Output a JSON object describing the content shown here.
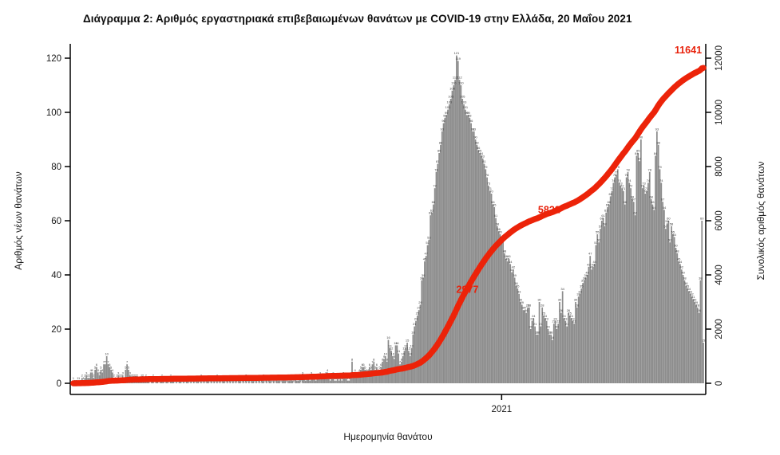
{
  "title": "Διάγραμμα 2: Αριθμός εργαστηριακά επιβεβαιωμένων θανάτων με COVID-19 στην Ελλάδα, 20 Μαΐου 2021",
  "colors": {
    "bar": "#8c8c8c",
    "bar_label": "#3d3d3d",
    "line": "#ec2309",
    "annotation": "#e8220c",
    "axis": "#000000",
    "tick_label": "#1a1a1a"
  },
  "chart_data": {
    "type": "bar",
    "title": "Διάγραμμα 2: Αριθμός εργαστηριακά επιβεβαιωμένων θανάτων με COVID-19 στην Ελλάδα, 20 Μαΐου 2021",
    "xlabel": "Ημερομηνία θανάτου",
    "ylabel_left": "Αριθμός νέων θανάτων",
    "ylabel_right": "Συνολικός αριθμός θανάτων",
    "bars_series_name": "Αριθμός νέων θανάτων (daily deaths)",
    "line_series_name": "Συνολικός αριθμός θανάτων (cumulative deaths)",
    "ylim_left": [
      0,
      120
    ],
    "ylim_right": [
      0,
      12000
    ],
    "yticks_left": [
      0,
      20,
      40,
      60,
      80,
      100,
      120
    ],
    "yticks_right": [
      0,
      2000,
      4000,
      6000,
      8000,
      10000,
      12000
    ],
    "x_tick_label": "2021",
    "x_tick_index": 295,
    "grid": false,
    "legend": "none",
    "line_end_value": 11641,
    "annotations": [
      {
        "label": "2977",
        "value": 2977
      },
      {
        "label": "5822",
        "value": 5822
      },
      {
        "label": "11641",
        "value": 11641
      }
    ],
    "values": [
      1,
      0,
      0,
      1,
      1,
      0,
      2,
      1,
      2,
      3,
      2,
      2,
      4,
      4,
      2,
      5,
      6,
      4,
      3,
      5,
      4,
      7,
      7,
      10,
      7,
      6,
      5,
      4,
      2,
      1,
      2,
      3,
      2,
      2,
      3,
      1,
      5,
      7,
      5,
      3,
      2,
      2,
      2,
      2,
      2,
      1,
      1,
      2,
      2,
      1,
      2,
      1,
      1,
      0,
      1,
      2,
      0,
      1,
      1,
      0,
      1,
      2,
      1,
      0,
      1,
      1,
      0,
      2,
      1,
      1,
      0,
      1,
      0,
      1,
      1,
      0,
      1,
      0,
      1,
      1,
      0,
      1,
      0,
      1,
      0,
      1,
      1,
      0,
      2,
      0,
      1,
      0,
      1,
      1,
      0,
      1,
      0,
      1,
      0,
      2,
      0,
      1,
      0,
      1,
      1,
      0,
      1,
      0,
      1,
      0,
      1,
      0,
      1,
      0,
      1,
      1,
      0,
      1,
      0,
      2,
      0,
      1,
      0,
      1,
      1,
      0,
      1,
      0,
      1,
      0,
      1,
      2,
      0,
      1,
      0,
      1,
      1,
      0,
      1,
      0,
      1,
      1,
      1,
      0,
      1,
      2,
      1,
      0,
      1,
      1,
      2,
      1,
      0,
      2,
      1,
      1,
      2,
      0,
      3,
      2,
      1,
      2,
      2,
      1,
      3,
      2,
      2,
      1,
      2,
      2,
      3,
      2,
      2,
      2,
      3,
      4,
      2,
      1,
      2,
      3,
      1,
      1,
      2,
      1,
      2,
      1,
      3,
      2,
      2,
      1,
      1,
      2,
      8,
      2,
      4,
      2,
      3,
      4,
      5,
      6,
      6,
      5,
      4,
      4,
      6,
      5,
      7,
      8,
      5,
      6,
      4,
      5,
      6,
      8,
      9,
      10,
      8,
      16,
      13,
      12,
      10,
      9,
      14,
      14,
      11,
      7,
      8,
      10,
      12,
      13,
      15,
      12,
      10,
      13,
      18,
      21,
      23,
      25,
      27,
      29,
      38,
      39,
      45,
      47,
      51,
      53,
      62,
      63,
      66,
      72,
      78,
      81,
      85,
      88,
      93,
      96,
      98,
      99,
      101,
      103,
      105,
      108,
      110,
      112,
      121,
      119,
      112,
      110,
      105,
      103,
      101,
      99,
      99,
      98,
      96,
      93,
      93,
      90,
      88,
      86,
      85,
      84,
      83,
      81,
      79,
      76,
      73,
      71,
      70,
      66,
      65,
      61,
      58,
      56,
      55,
      53,
      53,
      48,
      46,
      45,
      46,
      44,
      41,
      42,
      39,
      36,
      35,
      33,
      30,
      29,
      27,
      27,
      26,
      28,
      28,
      20,
      23,
      24,
      21,
      18,
      18,
      30,
      21,
      28,
      25,
      24,
      23,
      20,
      18,
      18,
      16,
      22,
      23,
      20,
      22,
      30,
      26,
      34,
      24,
      23,
      21,
      26,
      25,
      24,
      23,
      22,
      30,
      28,
      32,
      33,
      35,
      37,
      38,
      39,
      40,
      43,
      47,
      42,
      43,
      44,
      51,
      55,
      52,
      57,
      60,
      61,
      58,
      63,
      65,
      66,
      69,
      71,
      74,
      76,
      77,
      79,
      74,
      73,
      72,
      71,
      66,
      76,
      78,
      74,
      72,
      68,
      67,
      62,
      84,
      85,
      82,
      90,
      72,
      73,
      70,
      71,
      74,
      78,
      68,
      66,
      64,
      84,
      93,
      88,
      79,
      74,
      67,
      64,
      57,
      59,
      60,
      52,
      58,
      55,
      54,
      50,
      48,
      45,
      44,
      42,
      40,
      38,
      36,
      35,
      34,
      33,
      32,
      31,
      30,
      29,
      28,
      26,
      38,
      60,
      15
    ]
  }
}
